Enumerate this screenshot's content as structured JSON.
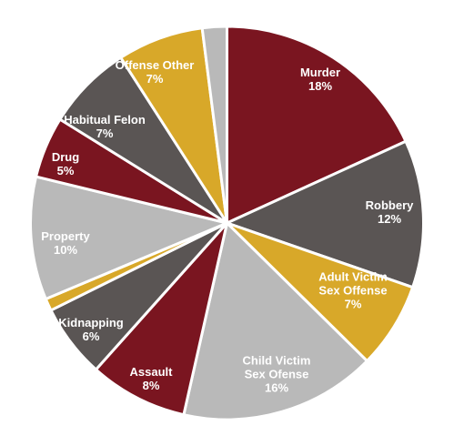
{
  "chart_data": {
    "type": "pie",
    "title": "",
    "start": "top",
    "direction": "clockwise",
    "slices": [
      {
        "label_lines": [
          "Murder",
          "18%"
        ],
        "value": 18,
        "color": "#7a1520"
      },
      {
        "label_lines": [
          "Robbery",
          "12%"
        ],
        "value": 12,
        "color": "#5a5554"
      },
      {
        "label_lines": [
          "Adult Victim",
          "Sex Offense",
          "7%"
        ],
        "value": 7,
        "color": "#d8a829"
      },
      {
        "label_lines": [
          "Child Victim",
          "Sex Ofense",
          "16%"
        ],
        "value": 16,
        "color": "#b9b9b9"
      },
      {
        "label_lines": [
          "Assault",
          "8%"
        ],
        "value": 8,
        "color": "#7a1520"
      },
      {
        "label_lines": [
          "Kidnapping",
          "6%"
        ],
        "value": 6,
        "color": "#5a5554"
      },
      {
        "label_lines": [],
        "value": 1,
        "color": "#d8a829"
      },
      {
        "label_lines": [
          "Property",
          "10%"
        ],
        "value": 10,
        "color": "#b9b9b9"
      },
      {
        "label_lines": [
          "Drug",
          "5%"
        ],
        "value": 5,
        "color": "#7a1520"
      },
      {
        "label_lines": [
          "Habitual Felon",
          "7%"
        ],
        "value": 7,
        "color": "#5a5554"
      },
      {
        "label_lines": [
          "Offense Other",
          "7%"
        ],
        "value": 7,
        "color": "#d8a829"
      },
      {
        "label_lines": [],
        "value": 2,
        "color": "#b9b9b9"
      }
    ]
  }
}
